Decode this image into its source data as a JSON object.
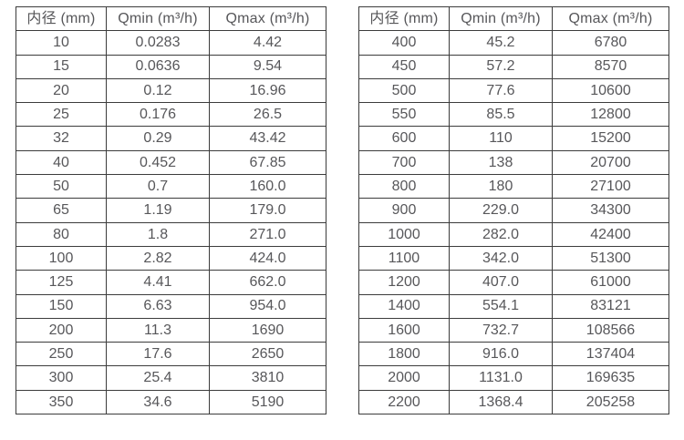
{
  "page": {
    "background_color": "#ffffff",
    "text_color": "#57575a",
    "border_color": "#3c3c3c"
  },
  "tables": [
    {
      "name": "small-diameters",
      "headers": [
        "内径 (mm)",
        "Qmin (m³/h)",
        "Qmax (m³/h)"
      ],
      "rows": [
        [
          "10",
          "0.0283",
          "4.42"
        ],
        [
          "15",
          "0.0636",
          "9.54"
        ],
        [
          "20",
          "0.12",
          "16.96"
        ],
        [
          "25",
          "0.176",
          "26.5"
        ],
        [
          "32",
          "0.29",
          "43.42"
        ],
        [
          "40",
          "0.452",
          "67.85"
        ],
        [
          "50",
          "0.7",
          "160.0"
        ],
        [
          "65",
          "1.19",
          "179.0"
        ],
        [
          "80",
          "1.8",
          "271.0"
        ],
        [
          "100",
          "2.82",
          "424.0"
        ],
        [
          "125",
          "4.41",
          "662.0"
        ],
        [
          "150",
          "6.63",
          "954.0"
        ],
        [
          "200",
          "11.3",
          "1690"
        ],
        [
          "250",
          "17.6",
          "2650"
        ],
        [
          "300",
          "25.4",
          "3810"
        ],
        [
          "350",
          "34.6",
          "5190"
        ]
      ]
    },
    {
      "name": "large-diameters",
      "headers": [
        "内径 (mm)",
        "Qmin (m³/h)",
        "Qmax (m³/h)"
      ],
      "rows": [
        [
          "400",
          "45.2",
          "6780"
        ],
        [
          "450",
          "57.2",
          "8570"
        ],
        [
          "500",
          "77.6",
          "10600"
        ],
        [
          "550",
          "85.5",
          "12800"
        ],
        [
          "600",
          "110",
          "15200"
        ],
        [
          "700",
          "138",
          "20700"
        ],
        [
          "800",
          "180",
          "27100"
        ],
        [
          "900",
          "229.0",
          "34300"
        ],
        [
          "1000",
          "282.0",
          "42400"
        ],
        [
          "1100",
          "342.0",
          "51300"
        ],
        [
          "1200",
          "407.0",
          "61000"
        ],
        [
          "1400",
          "554.1",
          "83121"
        ],
        [
          "1600",
          "732.7",
          "108566"
        ],
        [
          "1800",
          "916.0",
          "137404"
        ],
        [
          "2000",
          "1131.0",
          "169635"
        ],
        [
          "2200",
          "1368.4",
          "205258"
        ]
      ]
    }
  ]
}
